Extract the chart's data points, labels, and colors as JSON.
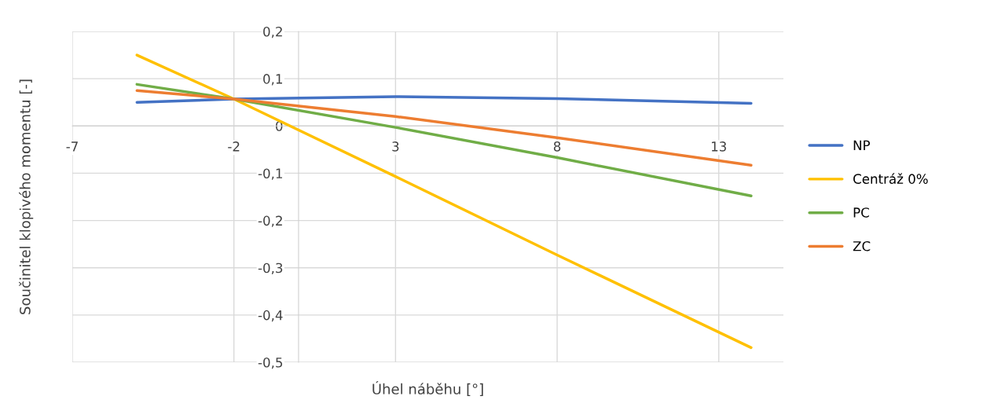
{
  "chart_data": {
    "type": "line",
    "xlabel": "Úhel náběhu [°]",
    "ylabel": "Součinitel klopivého momentu [-]",
    "xlim": [
      -7,
      15
    ],
    "xticks": [
      -7,
      -2,
      3,
      8,
      13
    ],
    "ylim": [
      -0.5,
      0.2
    ],
    "yticks": [
      {
        "value": 0.2,
        "label": "0,2"
      },
      {
        "value": 0.1,
        "label": "0,1"
      },
      {
        "value": 0,
        "label": "0"
      },
      {
        "value": -0.1,
        "label": "-0,1"
      },
      {
        "value": -0.2,
        "label": "-0,2"
      },
      {
        "value": -0.3,
        "label": "-0,3"
      },
      {
        "value": -0.4,
        "label": "-0,4"
      },
      {
        "value": -0.5,
        "label": "-0,5"
      }
    ],
    "grid": true,
    "legend": "right",
    "marker": "none",
    "line_style": "solid",
    "x": [
      -5,
      -2,
      3,
      8,
      14
    ],
    "series": [
      {
        "name": "NP",
        "color": "#4472c4",
        "values": [
          0.05,
          0.057,
          0.062,
          0.058,
          0.048
        ]
      },
      {
        "name": "Centráž 0%",
        "color": "#ffc000",
        "values": [
          0.15,
          0.057,
          -0.107,
          -0.273,
          -0.469
        ]
      },
      {
        "name": "PC",
        "color": "#70ad47",
        "values": [
          0.088,
          0.057,
          -0.003,
          -0.067,
          -0.148
        ]
      },
      {
        "name": "ZC",
        "color": "#ed7d31",
        "values": [
          0.075,
          0.057,
          0.02,
          -0.025,
          -0.083
        ]
      }
    ]
  }
}
